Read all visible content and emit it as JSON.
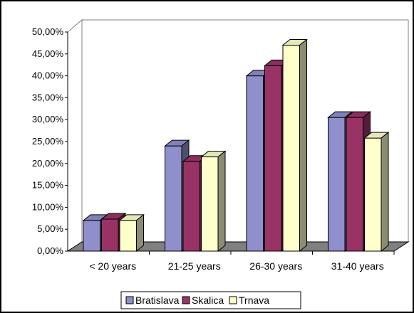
{
  "chart_data": {
    "type": "bar",
    "title": "",
    "xlabel": "",
    "ylabel": "",
    "categories": [
      "< 20 years",
      "21-25  years",
      "26-30 years",
      "31-40 years"
    ],
    "series": [
      {
        "name": "Bratislava",
        "values": [
          7.0,
          24.0,
          40.0,
          30.5
        ],
        "color": "#8E8FCB"
      },
      {
        "name": "Skalica",
        "values": [
          7.3,
          20.5,
          42.3,
          30.5
        ],
        "color": "#993366"
      },
      {
        "name": "Trnava",
        "values": [
          7.0,
          21.5,
          47.0,
          25.8
        ],
        "color": "#FFFFCC"
      }
    ],
    "ylim": [
      0,
      50
    ],
    "yticks": [
      "0,00%",
      "5,00%",
      "10,00%",
      "15,00%",
      "20,00%",
      "25,00%",
      "30,00%",
      "35,00%",
      "40,00%",
      "45,00%",
      "50,00%"
    ],
    "grid": false,
    "legend": "bottom",
    "three_d": true
  }
}
